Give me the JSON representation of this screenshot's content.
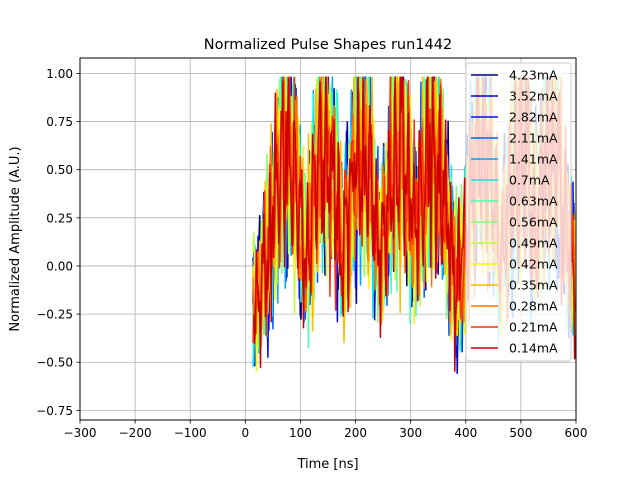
{
  "chart_data": {
    "type": "line",
    "title": "Normalized Pulse Shapes run1442",
    "xlabel": "Time [ns]",
    "ylabel": "Normalized Amplitude (A.U.)",
    "xlim": [
      -300,
      600
    ],
    "ylim": [
      -0.8,
      1.08
    ],
    "xticks": [
      -300,
      -200,
      -100,
      0,
      100,
      200,
      300,
      400,
      500,
      600
    ],
    "xtick_labels": [
      "−300",
      "−200",
      "−100",
      "0",
      "100",
      "200",
      "300",
      "400",
      "500",
      "600"
    ],
    "yticks": [
      -0.75,
      -0.5,
      -0.25,
      0.0,
      0.25,
      0.5,
      0.75,
      1.0
    ],
    "ytick_labels": [
      "−0.75",
      "−0.50",
      "−0.25",
      "0.00",
      "0.25",
      "0.50",
      "0.75",
      "1.00"
    ],
    "grid": true,
    "legend_position": "top-right",
    "pulse_envelope": {
      "t_start": 14,
      "t_end": 600,
      "peak_times": [
        75,
        145,
        210,
        280,
        340,
        430,
        500,
        555
      ],
      "burst_width": 32,
      "max": 0.98,
      "min": -0.59
    },
    "series": [
      {
        "name": "4.23mA",
        "color": "#00007f",
        "seed": 1
      },
      {
        "name": "3.52mA",
        "color": "#0000c8",
        "seed": 2
      },
      {
        "name": "2.82mA",
        "color": "#0010ff",
        "seed": 3
      },
      {
        "name": "2.11mA",
        "color": "#0060ff",
        "seed": 4
      },
      {
        "name": "1.41mA",
        "color": "#00a4ff",
        "seed": 5
      },
      {
        "name": "0.7mA",
        "color": "#10e4e7",
        "seed": 6
      },
      {
        "name": "0.63mA",
        "color": "#4affad",
        "seed": 7
      },
      {
        "name": "0.56mA",
        "color": "#83ff73",
        "seed": 8
      },
      {
        "name": "0.49mA",
        "color": "#c1ff36",
        "seed": 9
      },
      {
        "name": "0.42mA",
        "color": "#f4f802",
        "seed": 10
      },
      {
        "name": "0.35mA",
        "color": "#ffb900",
        "seed": 11
      },
      {
        "name": "0.28mA",
        "color": "#ff7300",
        "seed": 12
      },
      {
        "name": "0.21mA",
        "color": "#ff3000",
        "seed": 13
      },
      {
        "name": "0.14mA",
        "color": "#cd0000",
        "seed": 14
      }
    ]
  }
}
